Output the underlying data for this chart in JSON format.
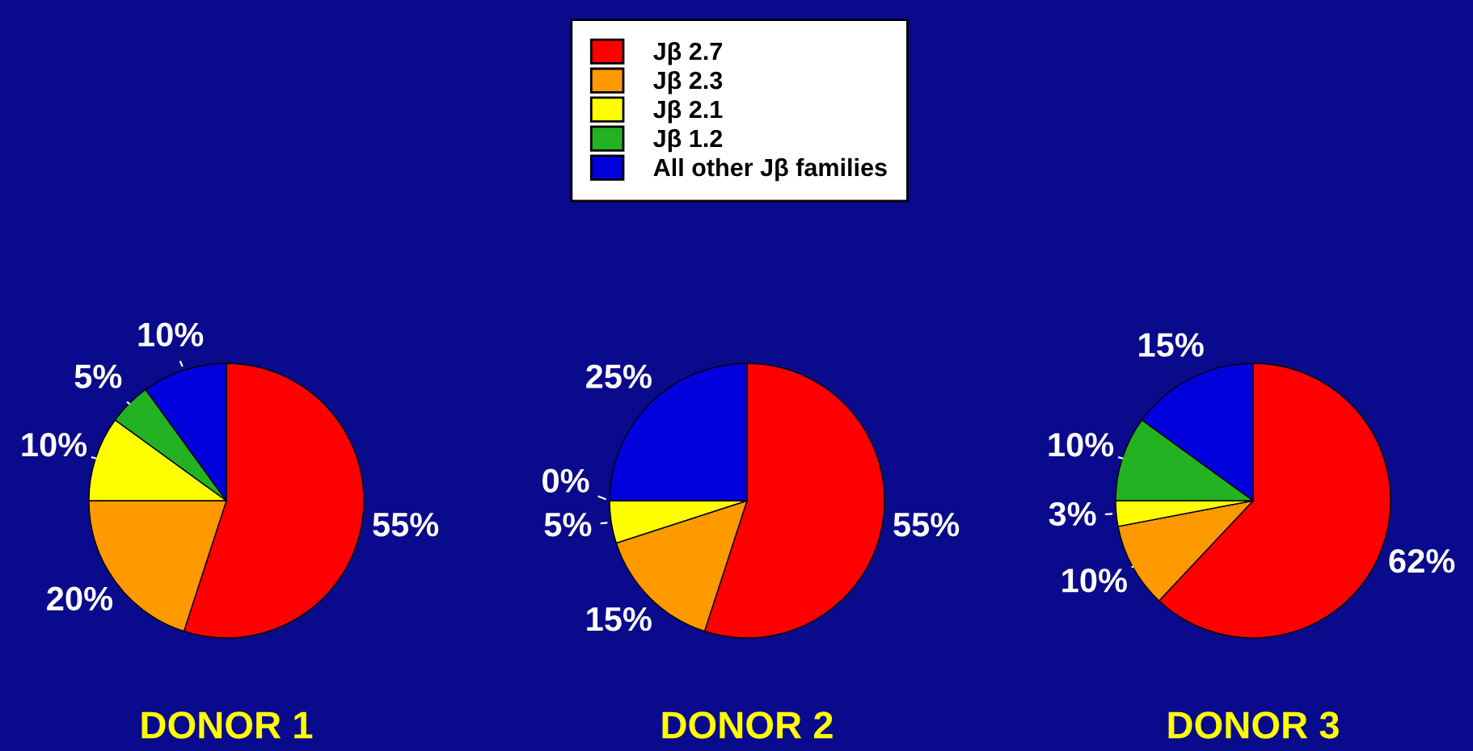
{
  "chart_data": [
    {
      "type": "pie",
      "title": "DONOR 1",
      "categories": [
        "Jβ 2.7",
        "Jβ 2.3",
        "Jβ 2.1",
        "Jβ 1.2",
        "All other Jβ families"
      ],
      "values": [
        55,
        20,
        10,
        5,
        10
      ],
      "colors": [
        "#ff0000",
        "#ff9900",
        "#ffff00",
        "#22b222",
        "#0000dd"
      ],
      "value_labels": [
        "55%",
        "20%",
        "10%",
        "5%",
        "10%"
      ],
      "legend": "top"
    },
    {
      "type": "pie",
      "title": "DONOR 2",
      "categories": [
        null,
        null,
        null,
        null,
        null
      ],
      "values": [
        55,
        15,
        5,
        0,
        25
      ],
      "colors": [
        "#ff0000",
        "#ff9900",
        "#ffff00",
        "#22b222",
        "#0000dd"
      ],
      "value_labels": [
        "55%",
        "15%",
        "5%",
        "0%",
        "25%"
      ]
    },
    {
      "type": "pie",
      "title": "DONOR 3",
      "categories": [
        null,
        null,
        null,
        null,
        null
      ],
      "values": [
        62,
        10,
        3,
        10,
        15
      ],
      "colors": [
        "#ff0000",
        "#ff9900",
        "#ffff00",
        "#22b222",
        "#0000dd"
      ],
      "value_labels": [
        "62%",
        "10%",
        "3%",
        "10%",
        "15%"
      ]
    }
  ]
}
